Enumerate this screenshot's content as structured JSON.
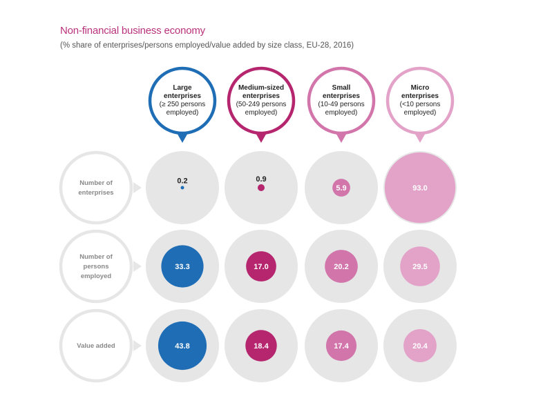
{
  "chart_data": {
    "type": "bubble-matrix",
    "title": "Non-financial business economy",
    "subtitle": "(% share of  enterprises/persons employed/value added by size class, EU-28, 2016)",
    "columns": [
      {
        "title_lines": [
          "Large",
          "enterprises"
        ],
        "sub_lines": [
          "(≥ 250 persons",
          "employed)"
        ],
        "color": "#1f6db5"
      },
      {
        "title_lines": [
          "Medium-sized",
          "enterprises"
        ],
        "sub_lines": [
          "(50-249 persons",
          "employed)"
        ],
        "color": "#b5266f"
      },
      {
        "title_lines": [
          "Small",
          "enterprises"
        ],
        "sub_lines": [
          "(10-49 persons",
          "employed)"
        ],
        "color": "#d175ab"
      },
      {
        "title_lines": [
          "Micro",
          "enterprises"
        ],
        "sub_lines": [
          "(<10 persons",
          "employed)"
        ],
        "color": "#e3a3c9"
      }
    ],
    "rows": [
      {
        "label_lines": [
          "Number of",
          "enterprises"
        ],
        "values": [
          0.2,
          0.9,
          5.9,
          93.0
        ],
        "labels": [
          "0.2",
          "0.9",
          "5.9",
          "93.0"
        ]
      },
      {
        "label_lines": [
          "Number of",
          "persons",
          "employed"
        ],
        "values": [
          33.3,
          17.0,
          20.2,
          29.5
        ],
        "labels": [
          "33.3",
          "17.0",
          "20.2",
          "29.5"
        ]
      },
      {
        "label_lines": [
          "Value added"
        ],
        "values": [
          43.8,
          18.4,
          17.4,
          20.4
        ],
        "labels": [
          "43.8",
          "18.4",
          "17.4",
          "20.4"
        ]
      }
    ],
    "bubble_background": "#e6e6e6",
    "unit": "%"
  }
}
